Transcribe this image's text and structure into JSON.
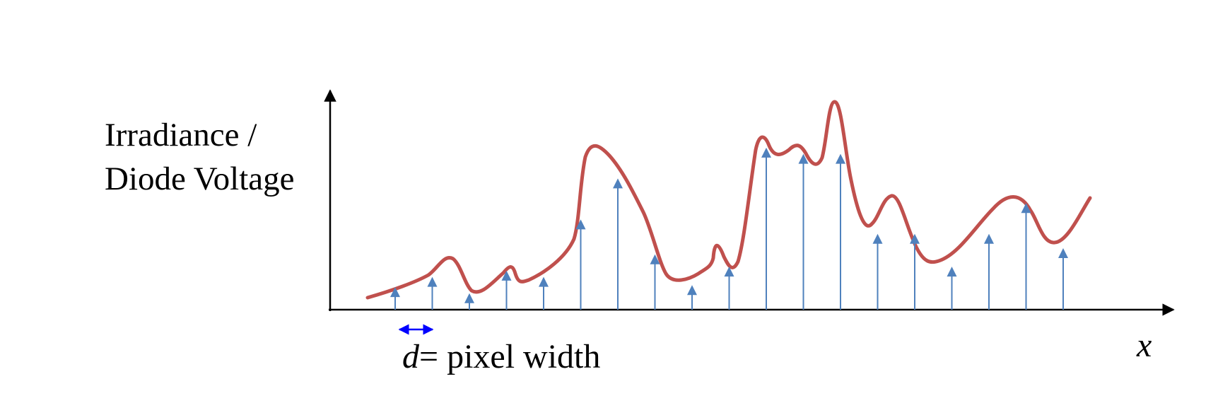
{
  "labels": {
    "y_axis_line1": "Irradiance /",
    "y_axis_line2": "Diode Voltage",
    "x_axis": "x",
    "d_symbol": "d",
    "d_definition": "= pixel width"
  },
  "colors": {
    "curve": "#C0504D",
    "samples": "#4F81BD",
    "axes": "#000000",
    "width_marker": "#0000FF"
  },
  "samples": {
    "count": 19,
    "heights": [
      0.11,
      0.16,
      0.08,
      0.19,
      0.16,
      0.44,
      0.64,
      0.27,
      0.12,
      0.21,
      0.79,
      0.76,
      0.76,
      0.37,
      0.37,
      0.21,
      0.37,
      0.52,
      0.3
    ]
  }
}
